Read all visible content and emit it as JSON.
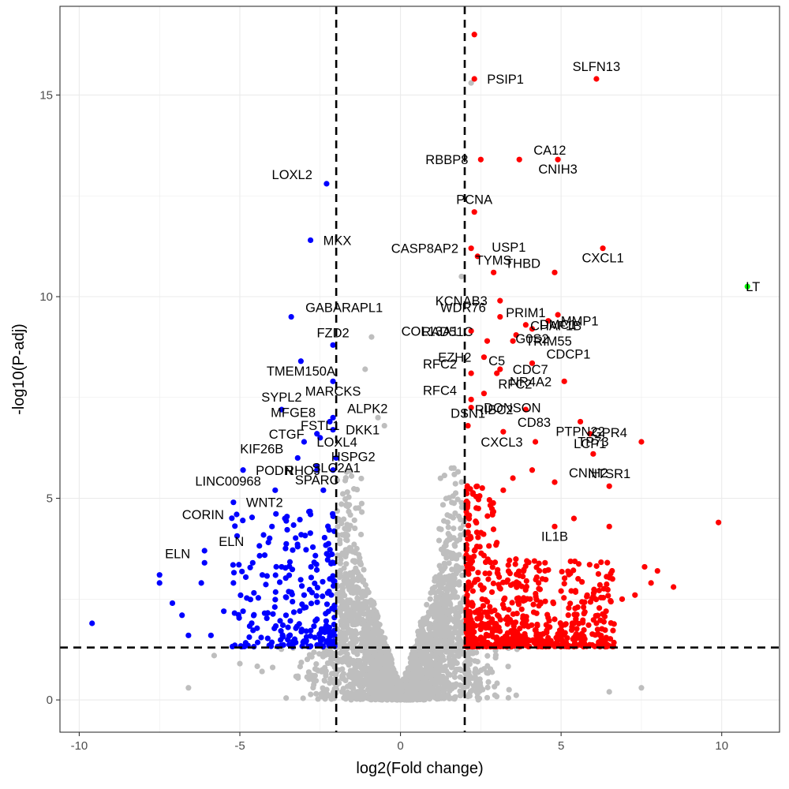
{
  "chart_data": {
    "type": "scatter",
    "title": "",
    "xlabel": "log2(Fold change)",
    "ylabel": "-log10(P-adj)",
    "xlim": [
      -10.6,
      11.8
    ],
    "ylim": [
      -0.8,
      17.2
    ],
    "x_ticks": [
      -10,
      -5,
      0,
      5,
      10
    ],
    "y_ticks": [
      0,
      5,
      10,
      15
    ],
    "x_tick_labels": [
      "-10",
      "-5",
      "0",
      "5",
      "10"
    ],
    "y_tick_labels": [
      "0",
      "5",
      "10",
      "15"
    ],
    "grid": true,
    "legend": "none",
    "thresholds": {
      "log2fc": [
        -2,
        2
      ],
      "neg_log10_padj": 1.3
    },
    "colors": {
      "down": "#0000ff",
      "up": "#ff0000",
      "ns": "#bebebe",
      "highlight": "#00ff00",
      "threshold_line": "#000000",
      "grid": "#ebebeb",
      "panel_border": "#333333"
    },
    "labeled_points": [
      {
        "label": "SLFN13",
        "x": 6.1,
        "y": 15.4,
        "group": "up"
      },
      {
        "label": "PSIP1",
        "x": 2.3,
        "y": 15.4,
        "group": "up"
      },
      {
        "label": "RBBP8",
        "x": 2.5,
        "y": 13.4,
        "group": "up"
      },
      {
        "label": "CNIH3",
        "x": 4.9,
        "y": 13.4,
        "group": "up"
      },
      {
        "label": "CA12",
        "x": 3.7,
        "y": 13.4,
        "group": "up"
      },
      {
        "label": "LOXL2",
        "x": -2.3,
        "y": 12.8,
        "group": "down"
      },
      {
        "label": "PCNA",
        "x": 2.3,
        "y": 12.1,
        "group": "up"
      },
      {
        "label": "MKX",
        "x": -2.8,
        "y": 11.4,
        "group": "down"
      },
      {
        "label": "CASP8AP2",
        "x": 2.2,
        "y": 11.2,
        "group": "up"
      },
      {
        "label": "CXCL1",
        "x": 6.3,
        "y": 11.2,
        "group": "up"
      },
      {
        "label": "USP1",
        "x": 2.4,
        "y": 11.0,
        "group": "up"
      },
      {
        "label": "THBD",
        "x": 4.8,
        "y": 10.6,
        "group": "up"
      },
      {
        "label": "TYMS",
        "x": 2.9,
        "y": 10.6,
        "group": "up"
      },
      {
        "label": "LT",
        "x": 10.8,
        "y": 10.25,
        "group": "highlight"
      },
      {
        "label": "KCNAB3",
        "x": 3.1,
        "y": 9.9,
        "group": "up"
      },
      {
        "label": "DMC1",
        "x": 4.9,
        "y": 9.55,
        "group": "up"
      },
      {
        "label": "GABARAPL1",
        "x": -3.4,
        "y": 9.5,
        "group": "down"
      },
      {
        "label": "WDR76",
        "x": 3.1,
        "y": 9.5,
        "group": "up"
      },
      {
        "label": "PRIM1",
        "x": 3.9,
        "y": 9.3,
        "group": "up"
      },
      {
        "label": "MMP1",
        "x": 4.6,
        "y": 9.4,
        "group": "up"
      },
      {
        "label": "COL13A1",
        "x": 2.2,
        "y": 9.15,
        "group": "up"
      },
      {
        "label": "G0S2",
        "x": 4.1,
        "y": 9.2,
        "group": "up"
      },
      {
        "label": "CHAF1B",
        "x": 3.6,
        "y": 9.05,
        "group": "up"
      },
      {
        "label": "RAD51C",
        "x": 2.7,
        "y": 8.9,
        "group": "up"
      },
      {
        "label": "FZD2",
        "x": -2.1,
        "y": 8.8,
        "group": "down"
      },
      {
        "label": "TRIM55",
        "x": 3.5,
        "y": 8.9,
        "group": "up"
      },
      {
        "label": "EZH2",
        "x": 2.6,
        "y": 8.5,
        "group": "up"
      },
      {
        "label": "TMEM150A",
        "x": -3.1,
        "y": 8.4,
        "group": "down"
      },
      {
        "label": "CDCP1",
        "x": 4.1,
        "y": 8.35,
        "group": "up"
      },
      {
        "label": "RFC2",
        "x": 2.2,
        "y": 8.1,
        "group": "up"
      },
      {
        "label": "C5",
        "x": 3.0,
        "y": 8.1,
        "group": "up"
      },
      {
        "label": "CDC7",
        "x": 3.1,
        "y": 8.2,
        "group": "up"
      },
      {
        "label": "NR4A2",
        "x": 5.1,
        "y": 7.9,
        "group": "up"
      },
      {
        "label": "MARCKS",
        "x": -2.1,
        "y": 7.9,
        "group": "down"
      },
      {
        "label": "RFC2",
        "x": 2.6,
        "y": 7.6,
        "group": "up"
      },
      {
        "label": "RFC4",
        "x": 2.2,
        "y": 7.45,
        "group": "up"
      },
      {
        "label": "SYPL2",
        "x": -3.7,
        "y": 7.2,
        "group": "down"
      },
      {
        "label": "DONSON",
        "x": 2.2,
        "y": 7.25,
        "group": "up"
      },
      {
        "label": "RIBC2",
        "x": 3.9,
        "y": 7.2,
        "group": "up"
      },
      {
        "label": "PTPN22",
        "x": 5.6,
        "y": 6.9,
        "group": "up"
      },
      {
        "label": "ALPK2",
        "x": -2.1,
        "y": 7.0,
        "group": "down"
      },
      {
        "label": "MFGE8",
        "x": -2.2,
        "y": 6.9,
        "group": "down"
      },
      {
        "label": "DSN1",
        "x": 2.1,
        "y": 6.8,
        "group": "up"
      },
      {
        "label": "DKK1",
        "x": -2.1,
        "y": 6.7,
        "group": "down"
      },
      {
        "label": "CTGF",
        "x": -2.6,
        "y": 6.6,
        "group": "down"
      },
      {
        "label": "LCP1",
        "x": 5.9,
        "y": 6.6,
        "group": "up"
      },
      {
        "label": "CD83",
        "x": 3.2,
        "y": 6.65,
        "group": "up"
      },
      {
        "label": "GPR4",
        "x": 7.5,
        "y": 6.4,
        "group": "up"
      },
      {
        "label": "FSTL1",
        "x": -2.5,
        "y": 6.5,
        "group": "down"
      },
      {
        "label": "LOXL4",
        "x": -3.0,
        "y": 6.4,
        "group": "down"
      },
      {
        "label": "CXCL3",
        "x": 4.2,
        "y": 6.4,
        "group": "up"
      },
      {
        "label": "SLC2A1",
        "x": -2.0,
        "y": 6.0,
        "group": "down"
      },
      {
        "label": "HSPG2",
        "x": -2.6,
        "y": 5.8,
        "group": "down"
      },
      {
        "label": "KIF26B",
        "x": -3.2,
        "y": 6.0,
        "group": "down"
      },
      {
        "label": "TP73",
        "x": 6.0,
        "y": 6.1,
        "group": "up"
      },
      {
        "label": "PODN",
        "x": -4.9,
        "y": 5.7,
        "group": "down"
      },
      {
        "label": "RHOJ",
        "x": -2.1,
        "y": 5.7,
        "group": "down"
      },
      {
        "label": "SPARC",
        "x": -2.6,
        "y": 5.7,
        "group": "down"
      },
      {
        "label": "CNIH2",
        "x": 4.8,
        "y": 5.4,
        "group": "up"
      },
      {
        "label": "LINC00968",
        "x": -3.9,
        "y": 5.2,
        "group": "down"
      },
      {
        "label": "NTSR1",
        "x": 6.5,
        "y": 5.3,
        "group": "up"
      },
      {
        "label": "WNT2",
        "x": -5.2,
        "y": 4.9,
        "group": "down"
      },
      {
        "label": "CORIN",
        "x": -5.1,
        "y": 4.6,
        "group": "down"
      },
      {
        "label": "IL1B",
        "x": 4.8,
        "y": 4.3,
        "group": "up"
      },
      {
        "label": "ELN",
        "x": -6.1,
        "y": 3.7,
        "group": "down"
      },
      {
        "label": "ELN",
        "x": -6.1,
        "y": 3.4,
        "group": "down"
      }
    ],
    "unlabeled_points": [
      [
        2.3,
        16.5,
        "up"
      ],
      [
        2.2,
        15.3,
        "ns"
      ],
      [
        1.9,
        10.5,
        "ns"
      ],
      [
        -0.9,
        9.0,
        "ns"
      ],
      [
        -1.1,
        8.2,
        "ns"
      ],
      [
        -0.7,
        7.0,
        "ns"
      ],
      [
        -0.5,
        6.8,
        "ns"
      ],
      [
        9.9,
        4.4,
        "up"
      ],
      [
        8.5,
        2.8,
        "up"
      ],
      [
        8.0,
        3.2,
        "up"
      ],
      [
        7.6,
        3.3,
        "up"
      ],
      [
        7.8,
        2.9,
        "up"
      ],
      [
        7.3,
        2.6,
        "up"
      ],
      [
        6.6,
        3.0,
        "up"
      ],
      [
        6.9,
        2.5,
        "up"
      ],
      [
        6.5,
        4.3,
        "up"
      ],
      [
        6.4,
        2.2,
        "up"
      ],
      [
        6.1,
        1.9,
        "up"
      ],
      [
        5.7,
        2.3,
        "up"
      ],
      [
        5.4,
        4.5,
        "up"
      ],
      [
        5.0,
        2.7,
        "up"
      ],
      [
        4.8,
        2.0,
        "up"
      ],
      [
        4.5,
        3.4,
        "up"
      ],
      [
        4.3,
        2.9,
        "up"
      ],
      [
        4.1,
        5.7,
        "up"
      ],
      [
        3.5,
        5.5,
        "up"
      ],
      [
        3.2,
        5.2,
        "up"
      ],
      [
        3.0,
        3.9,
        "up"
      ],
      [
        -9.6,
        1.9,
        "down"
      ],
      [
        -7.5,
        3.1,
        "down"
      ],
      [
        -7.5,
        2.9,
        "down"
      ],
      [
        -7.1,
        2.4,
        "down"
      ],
      [
        -6.8,
        2.1,
        "down"
      ],
      [
        -6.6,
        1.6,
        "down"
      ],
      [
        -6.2,
        2.9,
        "down"
      ],
      [
        -5.9,
        1.6,
        "down"
      ],
      [
        -5.5,
        2.2,
        "down"
      ],
      [
        -5.2,
        2.9,
        "down"
      ],
      [
        -4.9,
        2.2,
        "down"
      ],
      [
        -4.6,
        3.4,
        "down"
      ],
      [
        -4.3,
        3.1,
        "down"
      ],
      [
        -4.0,
        4.3,
        "down"
      ],
      [
        -3.7,
        3.3,
        "down"
      ],
      [
        -3.5,
        1.8,
        "down"
      ],
      [
        -3.2,
        3.8,
        "down"
      ],
      [
        -3.0,
        2.6,
        "down"
      ],
      [
        -2.8,
        4.6,
        "down"
      ],
      [
        -2.6,
        2.0,
        "down"
      ],
      [
        -2.4,
        5.2,
        "down"
      ],
      [
        -2.2,
        3.0,
        "down"
      ],
      [
        -2.1,
        1.6,
        "down"
      ],
      [
        -6.6,
        0.3,
        "ns"
      ],
      [
        -5.8,
        1.1,
        "ns"
      ],
      [
        -5.0,
        0.9,
        "ns"
      ],
      [
        6.5,
        0.2,
        "ns"
      ],
      [
        7.5,
        0.3,
        "ns"
      ]
    ]
  }
}
